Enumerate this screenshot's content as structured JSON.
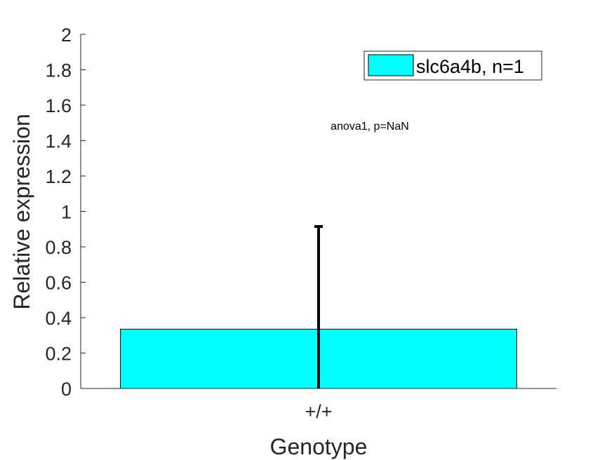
{
  "chart_data": {
    "type": "bar",
    "categories": [
      "+/+"
    ],
    "series": [
      {
        "name": "slc6a4b, n=1",
        "values": [
          0.335
        ],
        "error": [
          0.58
        ],
        "color": "#00ffff"
      }
    ],
    "xlabel": "Genotype",
    "ylabel": "Relative expression",
    "ylim": [
      0,
      2
    ],
    "yticks": [
      0,
      0.2,
      0.4,
      0.6,
      0.8,
      1,
      1.2,
      1.4,
      1.6,
      1.8,
      2
    ],
    "ytick_labels": [
      "0",
      "0.2",
      "0.4",
      "0.6",
      "0.8",
      "1",
      "1.2",
      "1.4",
      "1.6",
      "1.8",
      "2"
    ],
    "annotation": "anova1, p=NaN",
    "legend_position": "top-right",
    "grid": false,
    "axis_color": "#262626",
    "errorbar_color": "#000000"
  }
}
